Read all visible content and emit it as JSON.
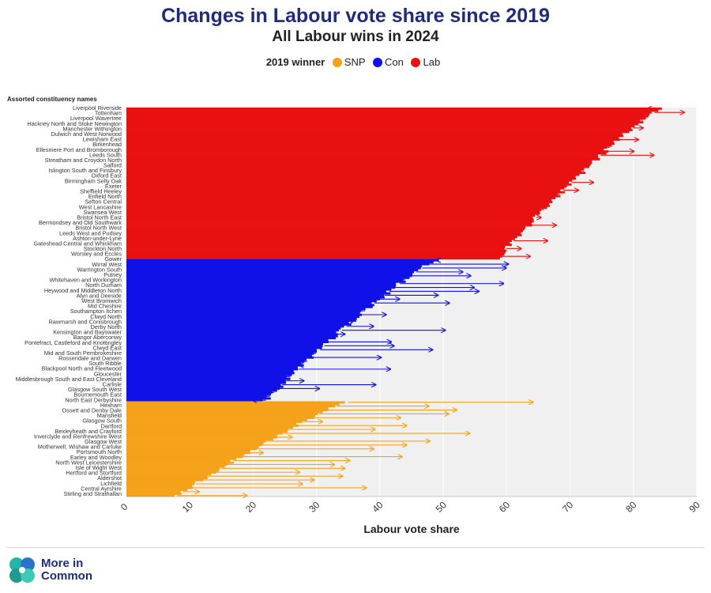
{
  "title": "Changes in Labour vote share since 2019",
  "subtitle": "All Labour wins in 2024",
  "legend": {
    "title": "2019 winner",
    "items": [
      {
        "label": "SNP",
        "color": "#f5a21b"
      },
      {
        "label": "Con",
        "color": "#1010e8"
      },
      {
        "label": "Lab",
        "color": "#e81010"
      }
    ]
  },
  "branding": {
    "line1": "More in",
    "line2": "Common"
  },
  "chart_data": {
    "type": "bar",
    "orientation": "horizontal",
    "xlabel": "Labour vote share",
    "ylabel": "Assorted constituency names",
    "xlim": [
      0,
      90
    ],
    "xticks": [
      0,
      10,
      20,
      30,
      40,
      50,
      60,
      70,
      80,
      90
    ],
    "grid": true,
    "legend_position": "top",
    "row_count": 200,
    "ytick_labels": [
      "Liverpool Riverside",
      "Tottenham",
      "Liverpool Wavertree",
      "Hackney North and Stoke Newington",
      "Manchester Withington",
      "Dulwich and West Norwood",
      "Lewisham East",
      "Birkenhead",
      "Ellesmere Port and Bromborough",
      "Leeds South",
      "Streatham and Croydon North",
      "Salford",
      "Islington South and Finsbury",
      "Oxford East",
      "Birmingham Selly Oak",
      "Exeter",
      "Sheffield Heeley",
      "Enfield North",
      "Sefton Central",
      "West Lancashire",
      "Swansea West",
      "Bristol North East",
      "Bermondsey and Old Southwark",
      "Bristol North West",
      "Leeds West and Pudsey",
      "Ashton-under-Lyne",
      "Gateshead Central and Whickham",
      "Stockton North",
      "Worsley and Eccles",
      "Gower",
      "Wirral West",
      "Warrington South",
      "Putney",
      "Whitehaven and Workington",
      "North Durham",
      "Heywood and Middleton North",
      "Alyn and Deeside",
      "West Bromwich",
      "Mid Cheshire",
      "Southampton Itchen",
      "Clwyd North",
      "Rawmarsh and Conisbrough",
      "Derby North",
      "Kensington and Bayswater",
      "Bangor Aberconwy",
      "Pontefract, Castleford and Knottingley",
      "Clwyd East",
      "Mid and South Pembrokeshire",
      "Rossendale and Darwen",
      "South Ribble",
      "Blackpool North and Fleetwood",
      "Gloucester",
      "Middlesbrough South and East Cleveland",
      "Carlisle",
      "Glasgow South West",
      "Bournemouth East",
      "North East Derbyshire",
      "Hexham",
      "Ossett and Denby Dale",
      "Mansfield",
      "Glasgow South",
      "Dartford",
      "Bexleyheath and Crayford",
      "Inverclyde and Renfrewshire West",
      "Glasgow West",
      "Motherwell, Wishaw and Carluke",
      "Portsmouth North",
      "Earley and Woodley",
      "North West Leicestershire",
      "Isle of Wight West",
      "Hertford and Stortford",
      "Aldershot",
      "Lichfield",
      "Central Ayrshire",
      "Stirling and Strathallan"
    ],
    "series": [
      {
        "name": "Lab",
        "color": "#e81010",
        "rows": [
          0,
          77
        ],
        "vote_share_2024": [
          84.5,
          58.5
        ],
        "change_range": [
          -25,
          10
        ]
      },
      {
        "name": "Con",
        "color": "#1010e8",
        "rows": [
          78,
          150
        ],
        "vote_share_2024": [
          49,
          22
        ],
        "change_range": [
          -12,
          20
        ]
      },
      {
        "name": "SNP",
        "color": "#f5a21b",
        "rows": [
          151,
          199
        ],
        "vote_share_2024": [
          35,
          8
        ],
        "change_range": [
          0,
          30
        ]
      }
    ]
  }
}
